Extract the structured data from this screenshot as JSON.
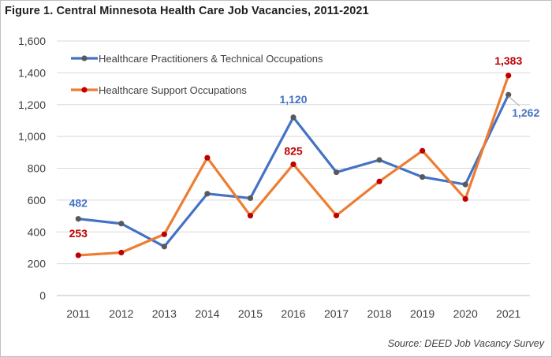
{
  "title": "Figure 1. Central Minnesota Health Care Job Vacancies, 2011-2021",
  "source": "Source: DEED Job Vacancy Survey",
  "chart_data": {
    "type": "line",
    "categories": [
      "2011",
      "2012",
      "2013",
      "2014",
      "2015",
      "2016",
      "2017",
      "2018",
      "2019",
      "2020",
      "2021"
    ],
    "ylim": [
      0,
      1600
    ],
    "yticks": [
      0,
      200,
      400,
      600,
      800,
      1000,
      1200,
      1400,
      1600
    ],
    "ytick_labels": [
      "0",
      "200",
      "400",
      "600",
      "800",
      "1,000",
      "1,200",
      "1,400",
      "1,600"
    ],
    "grid": true,
    "legend_position": "top-left",
    "series": [
      {
        "name": "Healthcare Practitioners & Technical Occupations",
        "color": "#4472c4",
        "marker_color": "#595959",
        "values": [
          482,
          452,
          308,
          640,
          612,
          1120,
          775,
          852,
          745,
          698,
          1262
        ]
      },
      {
        "name": "Healthcare Support Occupations",
        "color": "#ed7d31",
        "marker_color": "#c00000",
        "values": [
          253,
          270,
          385,
          866,
          502,
          825,
          503,
          717,
          910,
          607,
          1383
        ]
      }
    ],
    "data_labels": [
      {
        "series": 0,
        "index": 0,
        "text": "482",
        "color": "#4472c4"
      },
      {
        "series": 0,
        "index": 5,
        "text": "1,120",
        "color": "#4472c4"
      },
      {
        "series": 0,
        "index": 10,
        "text": "1,262",
        "color": "#4472c4"
      },
      {
        "series": 1,
        "index": 0,
        "text": "253",
        "color": "#c00000"
      },
      {
        "series": 1,
        "index": 5,
        "text": "825",
        "color": "#c00000"
      },
      {
        "series": 1,
        "index": 10,
        "text": "1,383",
        "color": "#c00000"
      }
    ]
  }
}
